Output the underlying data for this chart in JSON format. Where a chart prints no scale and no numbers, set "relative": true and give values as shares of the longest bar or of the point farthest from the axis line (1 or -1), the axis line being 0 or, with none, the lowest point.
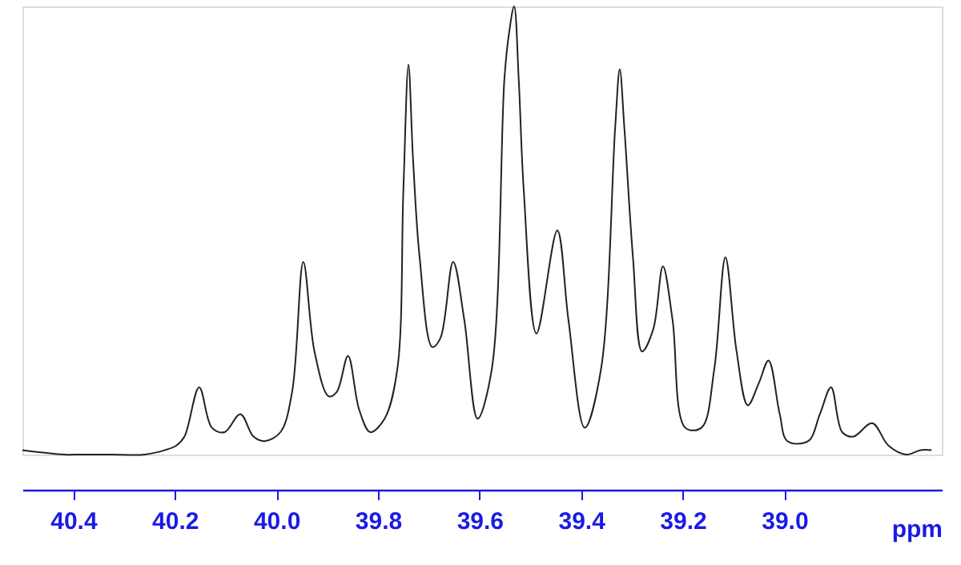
{
  "chart_data": {
    "type": "line",
    "relative": true,
    "xlabel": "ppm",
    "xlim": [
      40.5,
      38.69
    ],
    "xticks": [
      40.4,
      40.2,
      {
        "value": 40.0,
        "label": "40.0"
      },
      39.8,
      39.6,
      39.4,
      39.2,
      {
        "value": 39.0,
        "label": "39.0"
      }
    ],
    "grid": false,
    "marker": "none",
    "line_style": "solid",
    "series": [
      {
        "color": "#222222",
        "x": [
          40.5,
          40.417,
          40.386,
          40.323,
          40.26,
          40.219,
          40.197,
          40.181,
          40.152,
          40.127,
          40.102,
          40.071,
          40.045,
          40.023,
          39.992,
          39.969,
          39.947,
          39.925,
          39.897,
          39.881,
          39.859,
          39.837,
          39.815,
          39.787,
          39.762,
          39.75,
          39.74,
          39.731,
          39.718,
          39.693,
          39.677,
          39.652,
          39.63,
          39.604,
          39.576,
          39.551,
          39.542,
          39.532,
          39.523,
          39.513,
          39.488,
          39.447,
          39.425,
          39.393,
          39.361,
          39.333,
          39.324,
          39.315,
          39.298,
          39.28,
          39.258,
          39.239,
          39.22,
          39.195,
          39.163,
          39.138,
          39.116,
          39.094,
          39.072,
          39.05,
          39.031,
          39.009,
          38.994,
          38.953,
          38.93,
          38.908,
          38.886,
          38.864,
          38.827,
          38.795,
          38.76,
          38.732,
          38.71
        ],
        "values": [
          0.01,
          0.0,
          0.0,
          0.0,
          0.0,
          0.01,
          0.02,
          0.04,
          0.15,
          0.06,
          0.05,
          0.09,
          0.04,
          0.03,
          0.05,
          0.14,
          0.43,
          0.23,
          0.13,
          0.14,
          0.22,
          0.1,
          0.05,
          0.08,
          0.19,
          0.59,
          0.87,
          0.66,
          0.44,
          0.24,
          0.26,
          0.43,
          0.3,
          0.08,
          0.19,
          0.84,
          0.94,
          1.0,
          0.84,
          0.59,
          0.27,
          0.5,
          0.3,
          0.06,
          0.19,
          0.73,
          0.86,
          0.73,
          0.44,
          0.23,
          0.28,
          0.42,
          0.3,
          0.06,
          0.06,
          0.19,
          0.44,
          0.23,
          0.11,
          0.16,
          0.21,
          0.09,
          0.03,
          0.03,
          0.09,
          0.15,
          0.05,
          0.04,
          0.07,
          0.02,
          0.0,
          0.01,
          0.01
        ]
      }
    ]
  }
}
